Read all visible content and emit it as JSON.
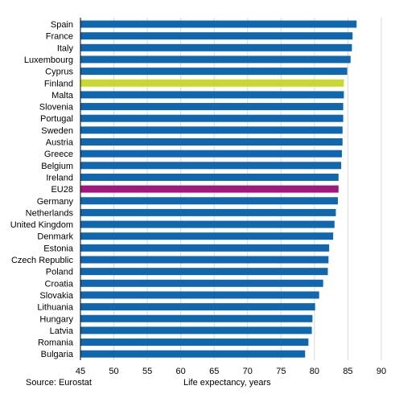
{
  "source": "Source: Eurostat",
  "chart_data": {
    "type": "bar",
    "orientation": "horizontal",
    "title": "",
    "xlabel": "Life expectancy, years",
    "ylabel": "",
    "xlim": [
      45,
      90
    ],
    "xticks": [
      45,
      50,
      55,
      60,
      65,
      70,
      75,
      80,
      85,
      90
    ],
    "grid": "vertical",
    "default_color": "#1067ad",
    "categories": [
      "Spain",
      "France",
      "Italy",
      "Luxembourg",
      "Cyprus",
      "Finland",
      "Malta",
      "Slovenia",
      "Portugal",
      "Sweden",
      "Austria",
      "Greece",
      "Belgium",
      "Ireland",
      "EU28",
      "Germany",
      "Netherlands",
      "United Kingdom",
      "Denmark",
      "Estonia",
      "Czech Republic",
      "Poland",
      "Croatia",
      "Slovakia",
      "Lithuania",
      "Hungary",
      "Latvia",
      "Romania",
      "Bulgaria"
    ],
    "values": [
      86.3,
      85.7,
      85.6,
      85.4,
      84.9,
      84.4,
      84.4,
      84.3,
      84.3,
      84.2,
      84.2,
      84.1,
      84.0,
      83.6,
      83.6,
      83.5,
      83.2,
      83.0,
      82.8,
      82.2,
      82.1,
      82.0,
      81.3,
      80.7,
      80.1,
      79.7,
      79.6,
      79.1,
      78.6
    ],
    "highlights": [
      {
        "category": "Finland",
        "color": "#c8d82f"
      },
      {
        "category": "EU28",
        "color": "#a0177e"
      }
    ]
  }
}
